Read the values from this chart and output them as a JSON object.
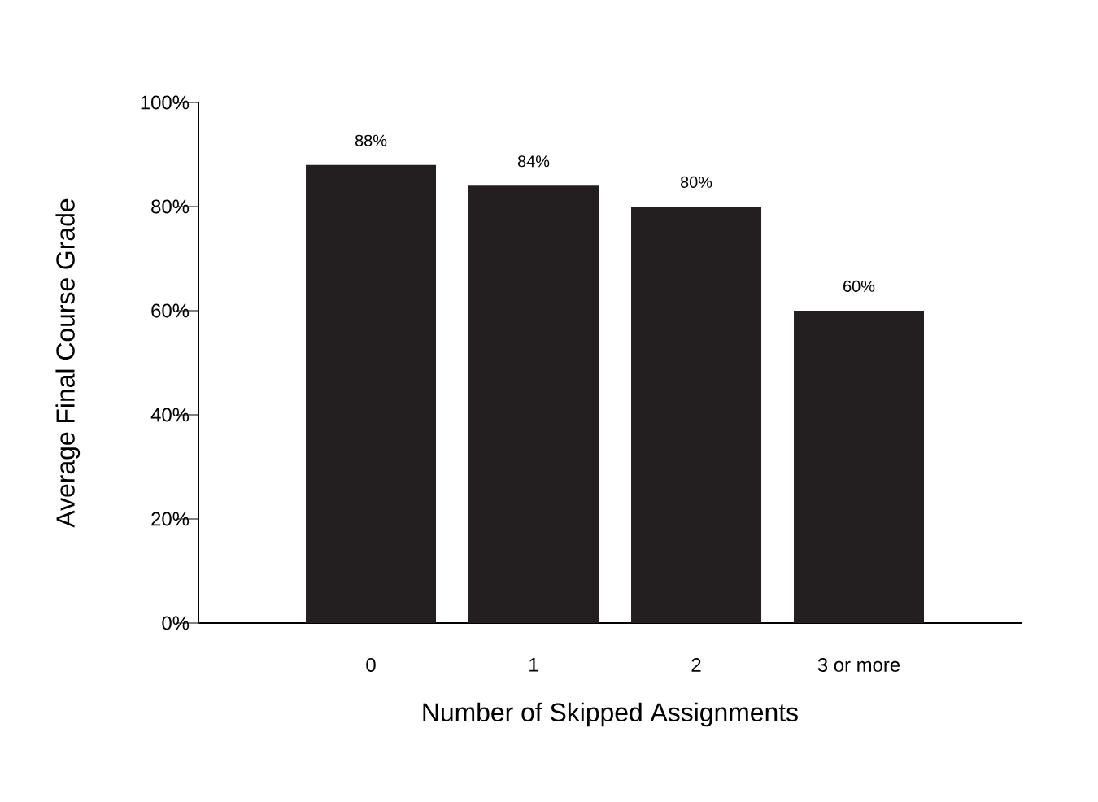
{
  "chart_data": {
    "type": "bar",
    "xlabel": "Number of Skipped Assignments",
    "ylabel": "Average Final Course Grade",
    "categories": [
      "0",
      "1",
      "2",
      "3 or more"
    ],
    "values": [
      88,
      84,
      80,
      60
    ],
    "value_labels": [
      "88%",
      "84%",
      "80%",
      "60%"
    ],
    "color": "#231f20",
    "ylim": [
      0,
      100
    ],
    "yticks": [
      {
        "value": 0,
        "label": "0%"
      },
      {
        "value": 20,
        "label": "20%"
      },
      {
        "value": 40,
        "label": "40%"
      },
      {
        "value": 60,
        "label": "60%"
      },
      {
        "value": 80,
        "label": "80%"
      },
      {
        "value": 100,
        "label": "100%"
      }
    ],
    "grid": false
  }
}
